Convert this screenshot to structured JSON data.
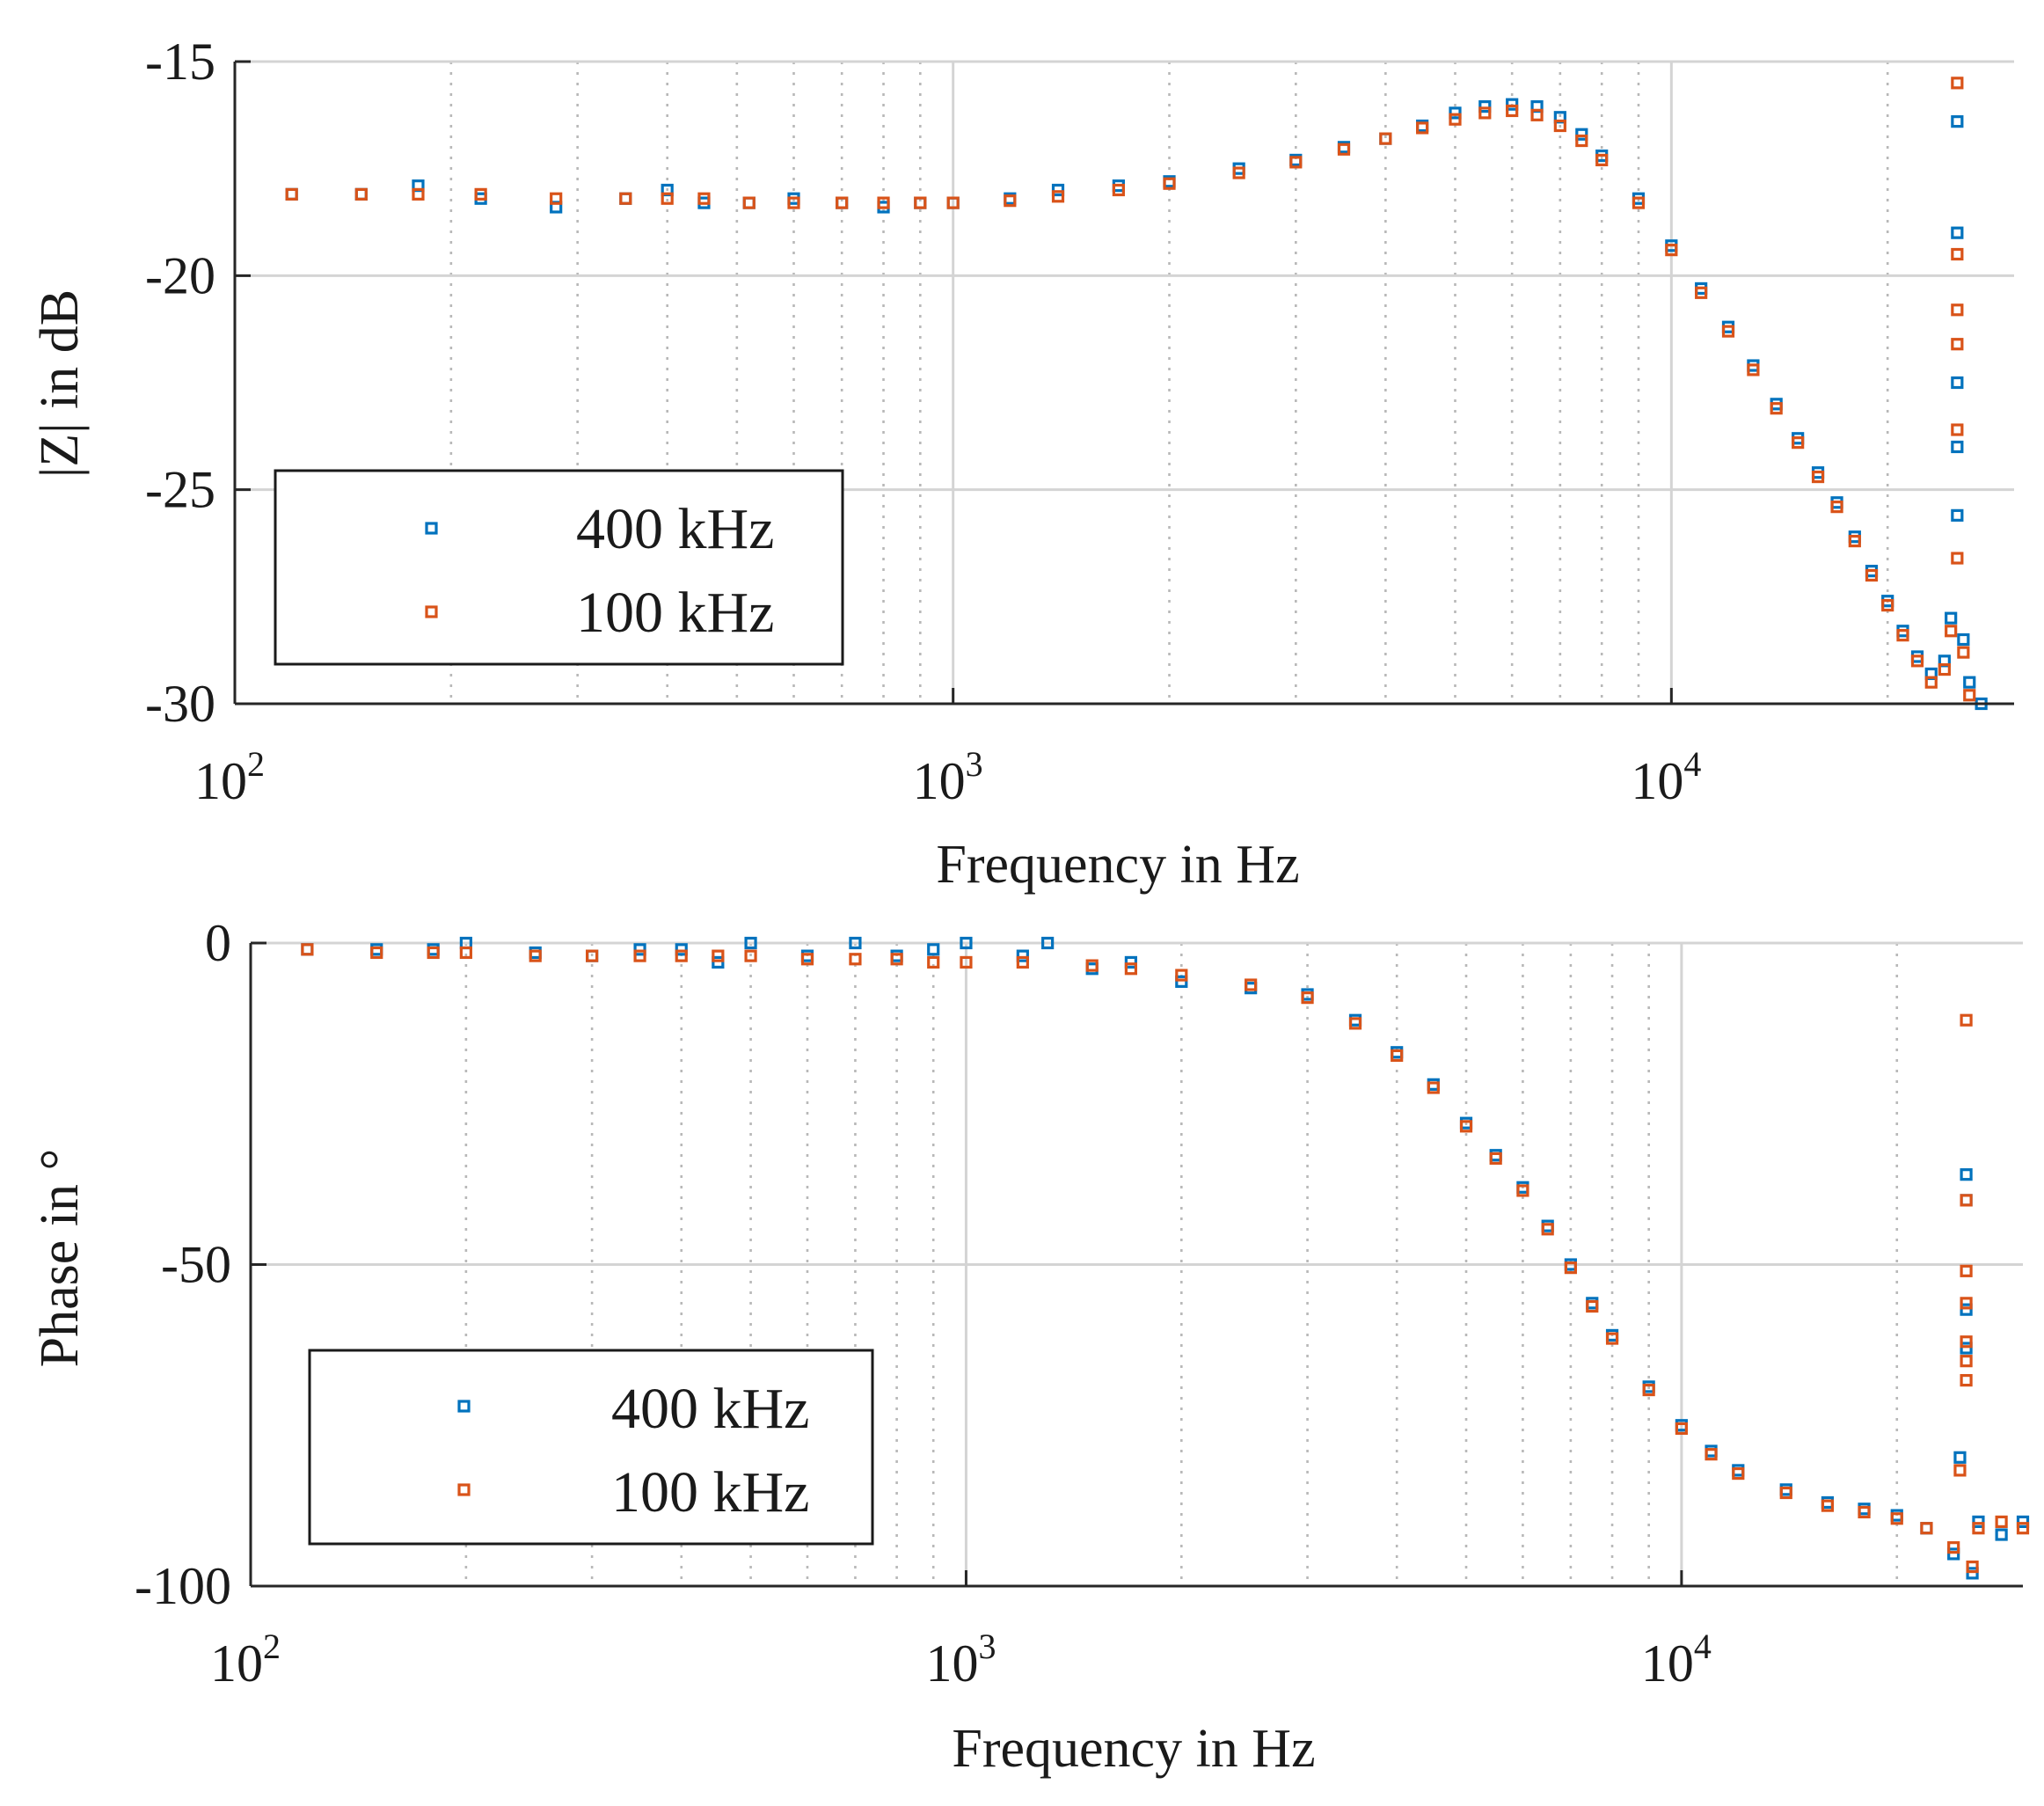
{
  "colors": {
    "series1": "#0072BD",
    "series2": "#D95319",
    "grid": "#d4d4d4",
    "axis": "#262626"
  },
  "chart_data": [
    {
      "type": "scatter",
      "xlabel": "Frequency in Hz",
      "ylabel": "|Z| in dB",
      "x_scale": "log",
      "xlim": [
        100,
        30000
      ],
      "ylim": [
        -30,
        -15
      ],
      "y_ticks": [
        -15,
        -20,
        -25,
        -30
      ],
      "y_tick_labels": [
        "-15",
        "-20",
        "-25",
        "-30"
      ],
      "x_ticks": [
        100,
        1000,
        10000
      ],
      "x_tick_labels": [
        {
          "base": "10",
          "exp": "2"
        },
        {
          "base": "10",
          "exp": "3"
        },
        {
          "base": "10",
          "exp": "4"
        }
      ],
      "grid": true,
      "legend_position": "lower-left",
      "series": [
        {
          "name": "400 kHz",
          "color": "#0072BD",
          "points": [
            [
              120,
              -18.1
            ],
            [
              150,
              -18.1
            ],
            [
              180,
              -17.9
            ],
            [
              220,
              -18.2
            ],
            [
              280,
              -18.4
            ],
            [
              350,
              -18.2
            ],
            [
              400,
              -18.0
            ],
            [
              450,
              -18.3
            ],
            [
              520,
              -18.3
            ],
            [
              600,
              -18.2
            ],
            [
              700,
              -18.3
            ],
            [
              800,
              -18.4
            ],
            [
              900,
              -18.3
            ],
            [
              1000,
              -18.3
            ],
            [
              1200,
              -18.2
            ],
            [
              1400,
              -18.0
            ],
            [
              1700,
              -17.9
            ],
            [
              2000,
              -17.8
            ],
            [
              2500,
              -17.5
            ],
            [
              3000,
              -17.3
            ],
            [
              3500,
              -17.0
            ],
            [
              4000,
              -16.8
            ],
            [
              4500,
              -16.5
            ],
            [
              5000,
              -16.2
            ],
            [
              5500,
              -16.05
            ],
            [
              6000,
              -16.0
            ],
            [
              6500,
              -16.05
            ],
            [
              7000,
              -16.3
            ],
            [
              7500,
              -16.7
            ],
            [
              8000,
              -17.2
            ],
            [
              9000,
              -18.2
            ],
            [
              10000,
              -19.3
            ],
            [
              11000,
              -20.3
            ],
            [
              12000,
              -21.2
            ],
            [
              13000,
              -22.1
            ],
            [
              14000,
              -23.0
            ],
            [
              15000,
              -23.8
            ],
            [
              16000,
              -24.6
            ],
            [
              17000,
              -25.3
            ],
            [
              18000,
              -26.1
            ],
            [
              19000,
              -26.9
            ],
            [
              20000,
              -27.6
            ],
            [
              21000,
              -28.3
            ],
            [
              22000,
              -28.9
            ],
            [
              23000,
              -29.3
            ],
            [
              24000,
              -29.0
            ],
            [
              24500,
              -28.0
            ],
            [
              25000,
              -16.4
            ],
            [
              25000,
              -19.0
            ],
            [
              25000,
              -22.5
            ],
            [
              25000,
              -24.0
            ],
            [
              25000,
              -25.6
            ],
            [
              25500,
              -28.5
            ],
            [
              26000,
              -29.5
            ],
            [
              27000,
              -30.0
            ]
          ]
        },
        {
          "name": "100 kHz",
          "color": "#D95319",
          "points": [
            [
              120,
              -18.1
            ],
            [
              150,
              -18.1
            ],
            [
              180,
              -18.1
            ],
            [
              220,
              -18.1
            ],
            [
              280,
              -18.2
            ],
            [
              350,
              -18.2
            ],
            [
              400,
              -18.2
            ],
            [
              450,
              -18.2
            ],
            [
              520,
              -18.3
            ],
            [
              600,
              -18.3
            ],
            [
              700,
              -18.3
            ],
            [
              800,
              -18.3
            ],
            [
              900,
              -18.3
            ],
            [
              1000,
              -18.3
            ],
            [
              1200,
              -18.25
            ],
            [
              1400,
              -18.15
            ],
            [
              1700,
              -18.0
            ],
            [
              2000,
              -17.85
            ],
            [
              2500,
              -17.6
            ],
            [
              3000,
              -17.35
            ],
            [
              3500,
              -17.05
            ],
            [
              4000,
              -16.8
            ],
            [
              4500,
              -16.55
            ],
            [
              5000,
              -16.35
            ],
            [
              5500,
              -16.2
            ],
            [
              6000,
              -16.15
            ],
            [
              6500,
              -16.25
            ],
            [
              7000,
              -16.5
            ],
            [
              7500,
              -16.85
            ],
            [
              8000,
              -17.3
            ],
            [
              9000,
              -18.3
            ],
            [
              10000,
              -19.4
            ],
            [
              11000,
              -20.4
            ],
            [
              12000,
              -21.3
            ],
            [
              13000,
              -22.2
            ],
            [
              14000,
              -23.1
            ],
            [
              15000,
              -23.9
            ],
            [
              16000,
              -24.7
            ],
            [
              17000,
              -25.4
            ],
            [
              18000,
              -26.2
            ],
            [
              19000,
              -27.0
            ],
            [
              20000,
              -27.7
            ],
            [
              21000,
              -28.4
            ],
            [
              22000,
              -29.0
            ],
            [
              23000,
              -29.5
            ],
            [
              24000,
              -29.2
            ],
            [
              24500,
              -28.3
            ],
            [
              25000,
              -15.5
            ],
            [
              25000,
              -19.5
            ],
            [
              25000,
              -20.8
            ],
            [
              25000,
              -21.6
            ],
            [
              25000,
              -23.6
            ],
            [
              25000,
              -26.6
            ],
            [
              25500,
              -28.8
            ],
            [
              26000,
              -29.8
            ]
          ]
        }
      ]
    },
    {
      "type": "scatter",
      "xlabel": "Frequency in Hz",
      "ylabel": "Phase in °",
      "x_scale": "log",
      "xlim": [
        100,
        30000
      ],
      "ylim": [
        -100,
        0
      ],
      "y_ticks": [
        0,
        -50,
        -100
      ],
      "y_tick_labels": [
        "0",
        "-50",
        "-100"
      ],
      "x_ticks": [
        100,
        1000,
        10000
      ],
      "x_tick_labels": [
        {
          "base": "10",
          "exp": "2"
        },
        {
          "base": "10",
          "exp": "3"
        },
        {
          "base": "10",
          "exp": "4"
        }
      ],
      "grid": true,
      "legend_position": "lower-left",
      "series": [
        {
          "name": "400 kHz",
          "color": "#0072BD",
          "points": [
            [
              120,
              -1.0
            ],
            [
              150,
              -1.0
            ],
            [
              180,
              -1.0
            ],
            [
              200,
              0.0
            ],
            [
              250,
              -1.5
            ],
            [
              300,
              -2.0
            ],
            [
              350,
              -1.0
            ],
            [
              400,
              -1.0
            ],
            [
              450,
              -3.0
            ],
            [
              500,
              0.0
            ],
            [
              600,
              -2.0
            ],
            [
              700,
              0.0
            ],
            [
              800,
              -2.0
            ],
            [
              900,
              -1.0
            ],
            [
              1000,
              0.0
            ],
            [
              1200,
              -2.0
            ],
            [
              1300,
              0.0
            ],
            [
              1500,
              -4.0
            ],
            [
              1700,
              -3.0
            ],
            [
              2000,
              -6.0
            ],
            [
              2500,
              -7.0
            ],
            [
              3000,
              -8.0
            ],
            [
              3500,
              -12.0
            ],
            [
              4000,
              -17.0
            ],
            [
              4500,
              -22.0
            ],
            [
              5000,
              -28.0
            ],
            [
              5500,
              -33.0
            ],
            [
              6000,
              -38.0
            ],
            [
              6500,
              -44.0
            ],
            [
              7000,
              -50.0
            ],
            [
              7500,
              -56.0
            ],
            [
              8000,
              -61.0
            ],
            [
              9000,
              -69.0
            ],
            [
              10000,
              -75.0
            ],
            [
              11000,
              -79.0
            ],
            [
              12000,
              -82.0
            ],
            [
              14000,
              -85.0
            ],
            [
              16000,
              -87.0
            ],
            [
              18000,
              -88.0
            ],
            [
              20000,
              -89.0
            ],
            [
              22000,
              -91.0
            ],
            [
              24000,
              -95.0
            ],
            [
              24500,
              -80.0
            ],
            [
              25000,
              -36.0
            ],
            [
              25000,
              -40.0
            ],
            [
              25000,
              -57.0
            ],
            [
              25000,
              -63.0
            ],
            [
              25500,
              -98.0
            ],
            [
              26000,
              -90.0
            ],
            [
              28000,
              -92.0
            ],
            [
              30000,
              -90.0
            ]
          ]
        },
        {
          "name": "100 kHz",
          "color": "#D95319",
          "points": [
            [
              120,
              -1.0
            ],
            [
              150,
              -1.5
            ],
            [
              180,
              -1.5
            ],
            [
              200,
              -1.5
            ],
            [
              250,
              -2.0
            ],
            [
              300,
              -2.0
            ],
            [
              350,
              -2.0
            ],
            [
              400,
              -2.0
            ],
            [
              450,
              -2.0
            ],
            [
              500,
              -2.0
            ],
            [
              600,
              -2.5
            ],
            [
              700,
              -2.5
            ],
            [
              800,
              -2.5
            ],
            [
              900,
              -3.0
            ],
            [
              1000,
              -3.0
            ],
            [
              1200,
              -3.0
            ],
            [
              1500,
              -3.5
            ],
            [
              1700,
              -4.0
            ],
            [
              2000,
              -5.0
            ],
            [
              2500,
              -6.5
            ],
            [
              3000,
              -8.5
            ],
            [
              3500,
              -12.5
            ],
            [
              4000,
              -17.5
            ],
            [
              4500,
              -22.5
            ],
            [
              5000,
              -28.5
            ],
            [
              5500,
              -33.5
            ],
            [
              6000,
              -38.5
            ],
            [
              6500,
              -44.5
            ],
            [
              7000,
              -50.5
            ],
            [
              7500,
              -56.5
            ],
            [
              8000,
              -61.5
            ],
            [
              9000,
              -69.5
            ],
            [
              10000,
              -75.5
            ],
            [
              11000,
              -79.5
            ],
            [
              12000,
              -82.5
            ],
            [
              14000,
              -85.5
            ],
            [
              16000,
              -87.5
            ],
            [
              18000,
              -88.5
            ],
            [
              20000,
              -89.5
            ],
            [
              22000,
              -91.0
            ],
            [
              24000,
              -94.0
            ],
            [
              24500,
              -82.0
            ],
            [
              25000,
              -12.0
            ],
            [
              25000,
              -40.0
            ],
            [
              25000,
              -51.0
            ],
            [
              25000,
              -56.0
            ],
            [
              25000,
              -62.0
            ],
            [
              25000,
              -65.0
            ],
            [
              25000,
              -68.0
            ],
            [
              25500,
              -97.0
            ],
            [
              26000,
              -91.0
            ],
            [
              28000,
              -90.0
            ],
            [
              30000,
              -91.0
            ]
          ]
        }
      ]
    }
  ]
}
